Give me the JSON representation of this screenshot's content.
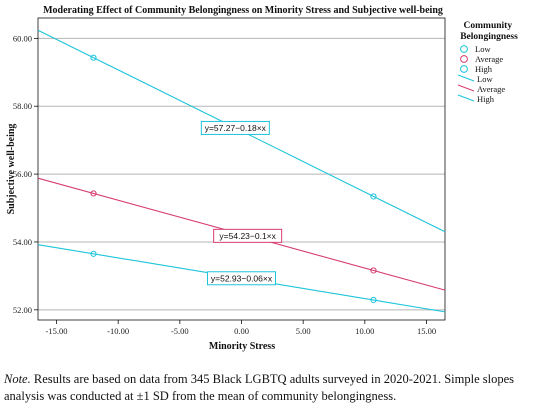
{
  "chart_data": {
    "type": "line",
    "title": "Moderating Effect of Community Belongingness on Minority Stress and Subjective well-being",
    "xlabel": "Minority Stress",
    "ylabel": "Subjective well-being",
    "xlim": [
      -16.5,
      16.5
    ],
    "ylim": [
      51.7,
      60.6
    ],
    "xticks": [
      -15,
      -10,
      -5,
      0,
      5,
      10,
      15
    ],
    "xtick_labels": [
      "-15.00",
      "-10.00",
      "-5.00",
      "0.00",
      "5.00",
      "10.00",
      "15.00"
    ],
    "yticks": [
      52,
      54,
      56,
      58,
      60
    ],
    "ytick_labels": [
      "52.00",
      "54.00",
      "56.00",
      "58.00",
      "60.00"
    ],
    "grid": "horizontal",
    "legend_title": "Community Belongingness",
    "legend_position": "top-right",
    "point_x": [
      -12,
      10.7
    ],
    "series": [
      {
        "name": "Low",
        "intercept": 57.27,
        "slope": -0.18,
        "color": "#1cc4da",
        "equation": "y=57.27−0.18×x",
        "points_y": [
          59.43,
          55.34
        ]
      },
      {
        "name": "Average",
        "intercept": 54.23,
        "slope": -0.1,
        "color": "#d63d70",
        "equation": "y=54.23−0.1×x",
        "points_y": [
          55.43,
          53.16
        ]
      },
      {
        "name": "High",
        "intercept": 52.93,
        "slope": -0.06,
        "color": "#1cc4da",
        "equation": "y=52.93−0.06×x",
        "points_y": [
          53.65,
          52.29
        ]
      }
    ],
    "legend_marker_labels": [
      "Low",
      "Average",
      "High"
    ],
    "legend_line_labels": [
      "Low",
      "Average",
      "High"
    ]
  },
  "note": {
    "label": "Note.",
    "text": " Results are based on data from 345 Black LGBTQ adults surveyed in 2020-2021. Simple slopes analysis was conducted at ±1 SD from the mean of community belongingness."
  }
}
